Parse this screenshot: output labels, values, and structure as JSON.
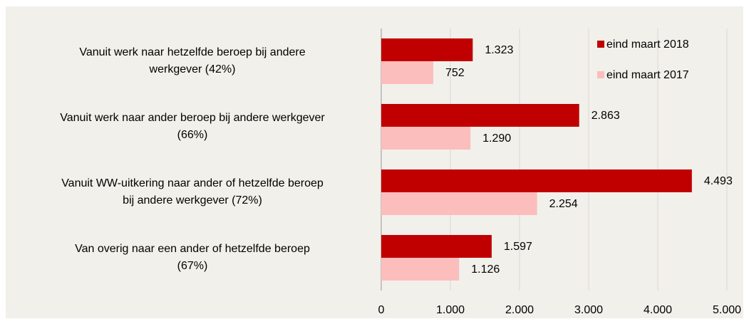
{
  "chart_data": {
    "type": "barh",
    "categories": [
      "Vanuit werk naar hetzelfde beroep bij andere\nwerkgever (42%)",
      "Vanuit werk naar ander beroep bij andere werkgever\n(66%)",
      "Vanuit WW-uitkering naar ander of hetzelfde beroep\nbij andere werkgever (72%)",
      "Van overig naar een ander of hetzelfde beroep\n(67%)"
    ],
    "series": [
      {
        "name": "eind maart 2018",
        "color": "#c00000",
        "values": [
          1323,
          2863,
          4493,
          1597
        ],
        "value_labels": [
          "1.323",
          "2.863",
          "4.493",
          "1.597"
        ]
      },
      {
        "name": "eind maart 2017",
        "color": "#fcbdbd",
        "values": [
          752,
          1290,
          2254,
          1126
        ],
        "value_labels": [
          "752",
          "1.290",
          "2.254",
          "1.126"
        ]
      }
    ],
    "xlim": [
      0,
      5000
    ],
    "xticks": [
      0,
      {
        "value": 1000,
        "label": "1.000"
      },
      {
        "value": 2000,
        "label": "2.000"
      },
      {
        "value": 3000,
        "label": "3.000"
      },
      {
        "value": 4000,
        "label": "4.000"
      },
      {
        "value": 5000,
        "label": "5.000"
      }
    ],
    "grid": true,
    "legend": "upper right"
  }
}
